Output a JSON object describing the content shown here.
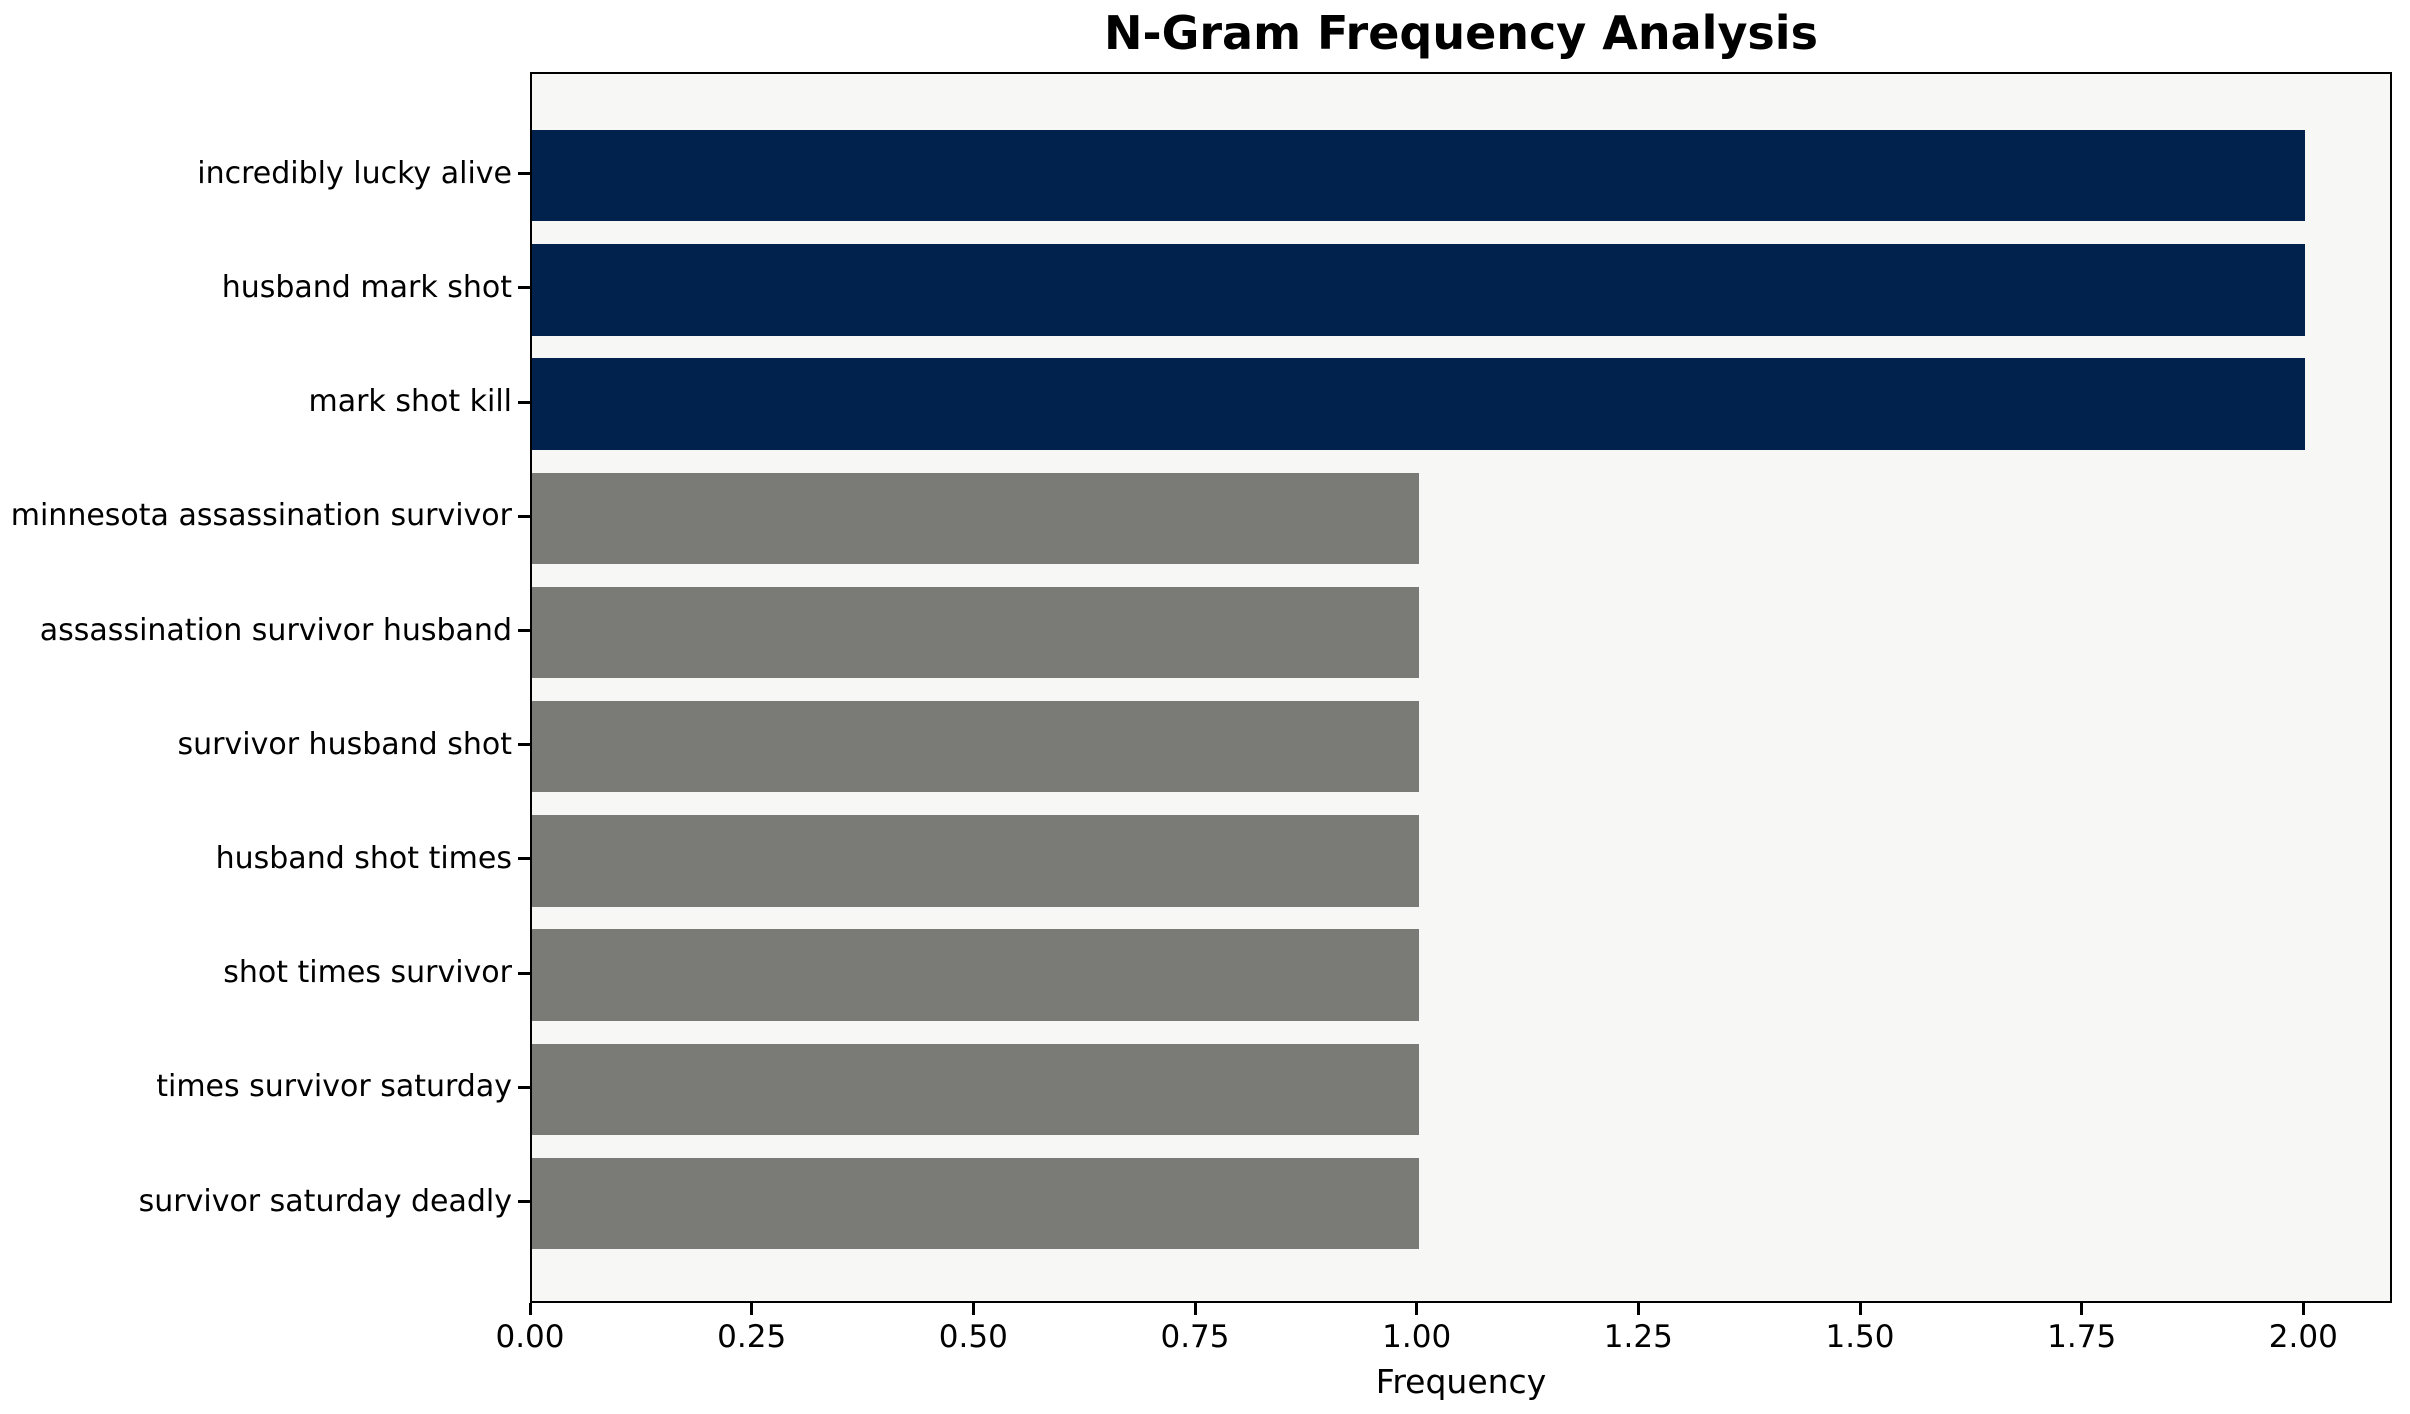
{
  "chart_data": {
    "type": "bar",
    "orientation": "horizontal",
    "title": "N-Gram Frequency Analysis",
    "xlabel": "Frequency",
    "ylabel": "",
    "categories": [
      "incredibly lucky alive",
      "husband mark shot",
      "mark shot kill",
      "minnesota assassination survivor",
      "assassination survivor husband",
      "survivor husband shot",
      "husband shot times",
      "shot times survivor",
      "times survivor saturday",
      "survivor saturday deadly"
    ],
    "values": [
      2,
      2,
      2,
      1,
      1,
      1,
      1,
      1,
      1,
      1
    ],
    "bar_colors": [
      "#00224d",
      "#00224d",
      "#00224d",
      "#7a7b77",
      "#7a7b77",
      "#7a7b77",
      "#7a7b77",
      "#7a7b77",
      "#7a7b77",
      "#7a7b77"
    ],
    "xlim": [
      0,
      2.1
    ],
    "xticks": [
      0,
      0.25,
      0.5,
      0.75,
      1.0,
      1.25,
      1.5,
      1.75,
      2.0
    ],
    "xtick_labels": [
      "0.00",
      "0.25",
      "0.50",
      "0.75",
      "1.00",
      "1.25",
      "1.50",
      "1.75",
      "2.00"
    ],
    "grid": false,
    "legend": null,
    "colors": {
      "high_frequency_bar": "#00224d",
      "low_frequency_bar": "#7a7b77",
      "plot_background": "#f7f7f6",
      "figure_background": "#ffffff",
      "spine": "#000000",
      "text": "#000000"
    }
  }
}
